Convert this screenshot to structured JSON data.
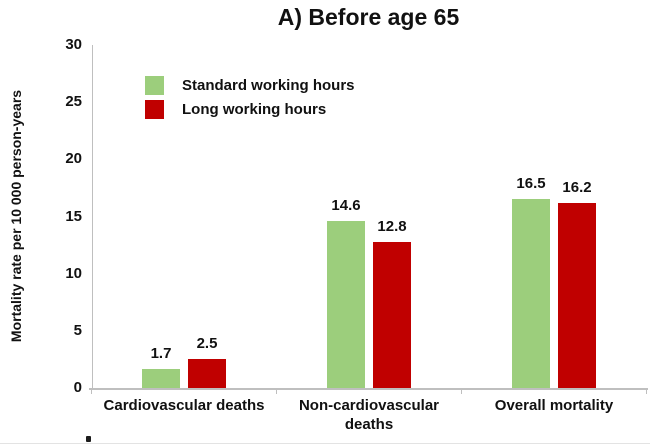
{
  "title": "A) Before age 65",
  "y_axis_title": "Mortality rate per 10 000 person-years",
  "colors": {
    "standard_green": "#9CCE7C",
    "long_red": "#C00000",
    "axis_gray": "#BFBFBF",
    "text": "#111111"
  },
  "legend": {
    "items": [
      {
        "label": "Standard working hours",
        "color": "#9CCE7C"
      },
      {
        "label": "Long working hours",
        "color": "#C00000"
      }
    ]
  },
  "chart_data": {
    "type": "bar",
    "title": "A) Before age 65",
    "xlabel": "",
    "ylabel": "Mortality rate per 10 000 person-years",
    "categories": [
      "Cardiovascular deaths",
      "Non-cardiovascular deaths",
      "Overall mortality"
    ],
    "category_lines": [
      [
        "Cardiovascular deaths"
      ],
      [
        "Non-cardiovascular",
        "deaths"
      ],
      [
        "Overall mortality"
      ]
    ],
    "series": [
      {
        "name": "Standard working hours",
        "color": "#9CCE7C",
        "values": [
          1.7,
          14.6,
          16.5
        ]
      },
      {
        "name": "Long working hours",
        "color": "#C00000",
        "values": [
          2.5,
          12.8,
          16.2
        ]
      }
    ],
    "value_labels": [
      [
        "1.7",
        "2.5"
      ],
      [
        "14.6",
        "12.8"
      ],
      [
        "16.5",
        "16.2"
      ]
    ],
    "ylim": [
      0,
      30
    ],
    "yticks": [
      0,
      5,
      10,
      15,
      20,
      25,
      30
    ],
    "grid": false,
    "legend_position": "upper-left-inside"
  }
}
